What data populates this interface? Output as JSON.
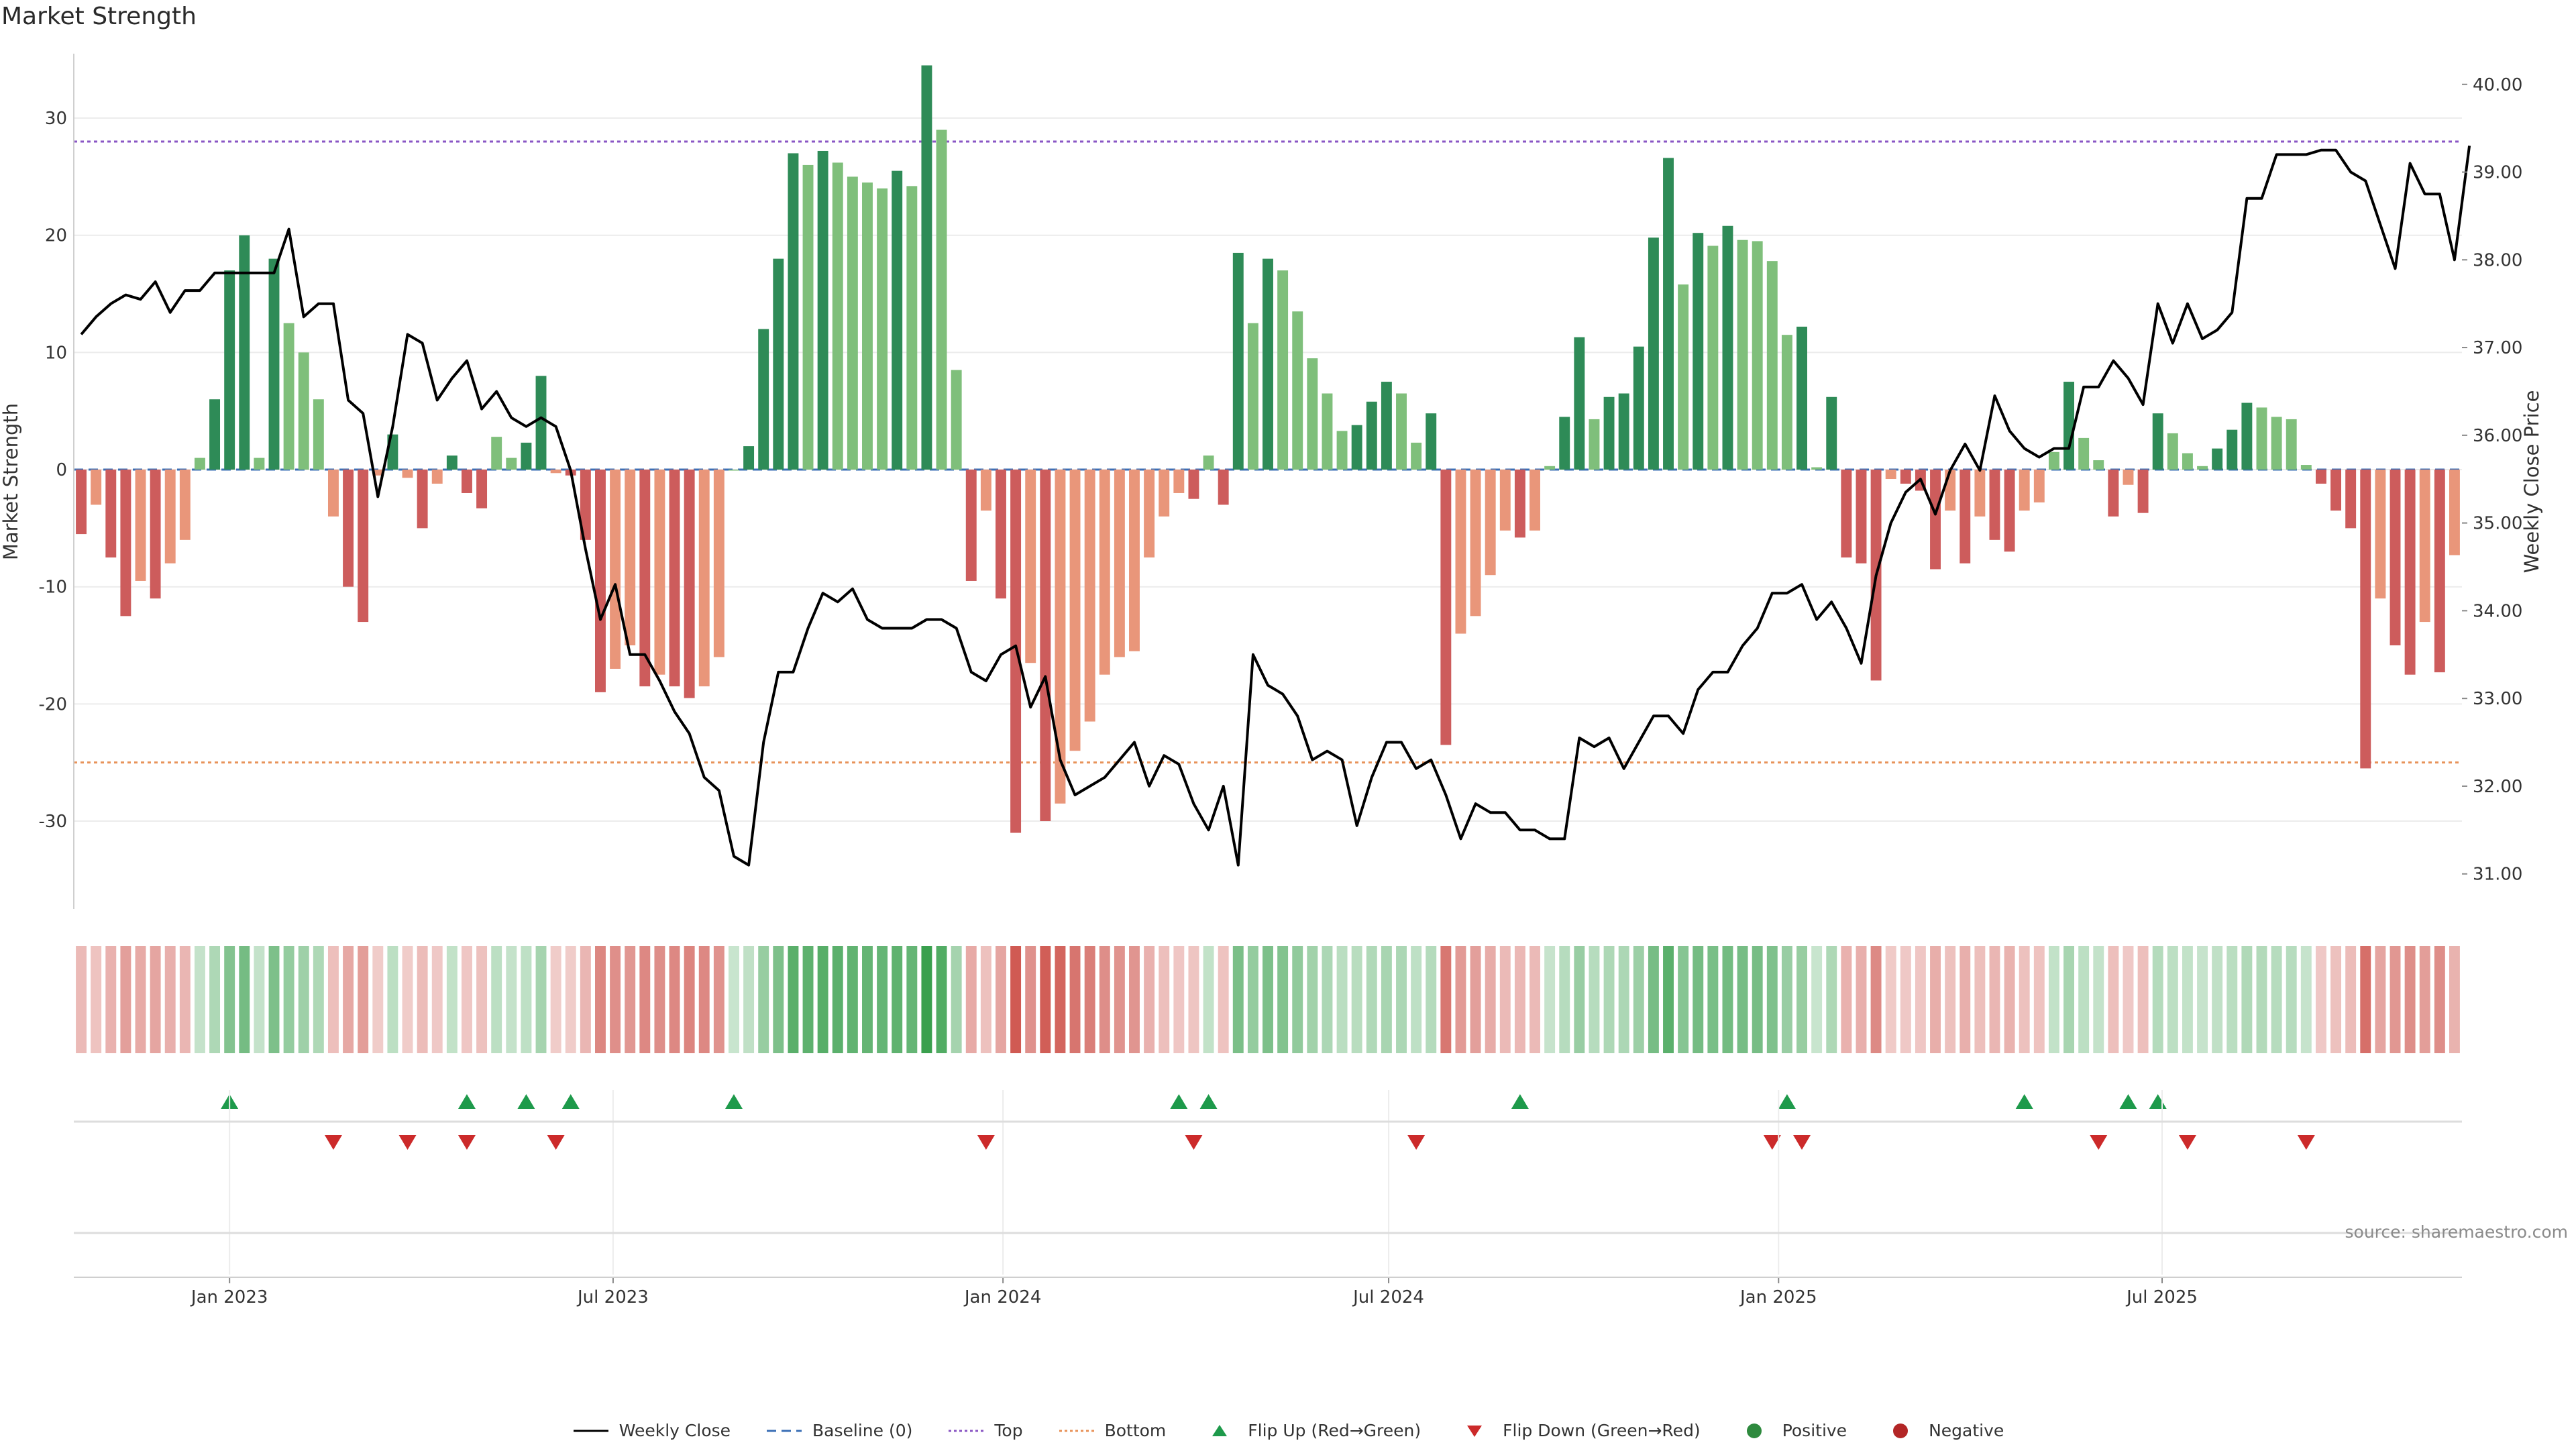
{
  "chart_data": {
    "type": "bar",
    "title": "Market Strength",
    "ylabel": "Market Strength",
    "y2label": "Weekly Close Price",
    "ylim": [
      -37.5,
      35.5
    ],
    "y2lim": [
      30.6,
      40.35
    ],
    "yticks": [
      -30,
      -20,
      -10,
      0,
      10,
      20,
      30
    ],
    "y2ticks": [
      "31.00",
      "32.00",
      "33.00",
      "34.00",
      "35.00",
      "36.00",
      "37.00",
      "38.00",
      "39.00",
      "40.00"
    ],
    "x_start": "2022-10-23",
    "x_step_days": 7,
    "xticks": [
      {
        "date": "2023-01-01",
        "label": "Jan 2023"
      },
      {
        "date": "2023-07-01",
        "label": "Jul 2023"
      },
      {
        "date": "2024-01-01",
        "label": "Jan 2024"
      },
      {
        "date": "2024-07-01",
        "label": "Jul 2024"
      },
      {
        "date": "2025-01-01",
        "label": "Jan 2025"
      },
      {
        "date": "2025-07-01",
        "label": "Jul 2025"
      }
    ],
    "top_threshold": 28,
    "bottom_threshold": -25,
    "grid": true,
    "legend_position": "bottom",
    "strength": [
      -5.5,
      -3,
      -7.5,
      -12.5,
      -9.5,
      -11,
      -8,
      -6,
      1,
      6,
      17,
      20,
      1,
      18,
      12.5,
      10,
      6,
      -4,
      -10,
      -13,
      -0.5,
      3,
      -0.7,
      -5,
      -1.2,
      1.2,
      -2,
      -3.3,
      2.8,
      1,
      2.3,
      8,
      -0.3,
      -0.5,
      -6,
      -19,
      -17,
      -15,
      -18.5,
      -17.5,
      -18.5,
      -19.5,
      -18.5,
      -16,
      0,
      2,
      12,
      18,
      27,
      26,
      27.2,
      26.2,
      25,
      24.5,
      24,
      25.5,
      24.2,
      34.5,
      29,
      8.5,
      -9.5,
      -3.5,
      -11,
      -31,
      -16.5,
      -30,
      -28.5,
      -24,
      -21.5,
      -17.5,
      -16,
      -15.5,
      -7.5,
      -4,
      -2,
      -2.5,
      1.2,
      -3,
      18.5,
      12.5,
      18,
      17,
      13.5,
      9.5,
      6.5,
      3.3,
      3.8,
      5.8,
      7.5,
      6.5,
      2.3,
      4.8,
      -23.5,
      -14,
      -12.5,
      -9,
      -5.2,
      -5.8,
      -5.2,
      0.3,
      4.5,
      11.3,
      4.3,
      6.2,
      6.5,
      10.5,
      19.8,
      26.6,
      15.8,
      20.2,
      19.1,
      20.8,
      19.6,
      19.5,
      17.8,
      11.5,
      12.2,
      0.2,
      6.2,
      -7.5,
      -8,
      -18,
      -0.8,
      -1.2,
      -1.8,
      -8.5,
      -3.5,
      -8,
      -4,
      -6,
      -7,
      -3.5,
      -2.8,
      1.5,
      7.5,
      2.7,
      0.8,
      -4,
      -1.3,
      -3.7,
      4.8,
      3.1,
      1.4,
      0.3,
      1.8,
      3.4,
      5.7,
      5.3,
      4.5,
      4.3,
      0.4,
      -1.2,
      -3.5,
      -5,
      -25.5,
      -11,
      -15,
      -17.5,
      -13,
      -17.3,
      -7.3
    ],
    "series": [
      {
        "name": "Weekly Close",
        "axis": "right",
        "values": [
          37.15,
          37.35,
          37.5,
          37.6,
          37.55,
          37.75,
          37.4,
          37.65,
          37.65,
          37.85,
          37.85,
          37.85,
          37.85,
          37.85,
          38.35,
          37.35,
          37.5,
          37.5,
          36.4,
          36.25,
          35.3,
          36.1,
          37.15,
          37.05,
          36.4,
          36.65,
          36.85,
          36.3,
          36.5,
          36.2,
          36.1,
          36.2,
          36.1,
          35.6,
          34.7,
          33.9,
          34.3,
          33.5,
          33.5,
          33.2,
          32.85,
          32.6,
          32.1,
          31.95,
          31.2,
          31.1,
          32.5,
          33.3,
          33.3,
          33.8,
          34.2,
          34.1,
          34.25,
          33.9,
          33.8,
          33.8,
          33.8,
          33.9,
          33.9,
          33.8,
          33.3,
          33.2,
          33.5,
          33.6,
          32.9,
          33.25,
          32.3,
          31.9,
          32,
          32.1,
          32.3,
          32.5,
          32,
          32.35,
          32.25,
          31.8,
          31.5,
          32,
          31.1,
          33.5,
          33.15,
          33.05,
          32.8,
          32.3,
          32.4,
          32.3,
          31.55,
          32.1,
          32.5,
          32.5,
          32.2,
          32.3,
          31.9,
          31.4,
          31.8,
          31.7,
          31.7,
          31.5,
          31.5,
          31.4,
          31.4,
          32.55,
          32.45,
          32.55,
          32.2,
          32.5,
          32.8,
          32.8,
          32.6,
          33.1,
          33.3,
          33.3,
          33.6,
          33.8,
          34.2,
          34.2,
          34.3,
          33.9,
          34.1,
          33.8,
          33.4,
          34.4,
          35,
          35.35,
          35.5,
          35.1,
          35.6,
          35.9,
          35.6,
          36.45,
          36.05,
          35.85,
          35.75,
          35.85,
          35.85,
          36.55,
          36.55,
          36.85,
          36.65,
          36.35,
          37.5,
          37.05,
          37.5,
          37.1,
          37.2,
          37.4,
          38.7,
          38.7,
          39.2,
          39.2,
          39.2,
          39.25,
          39.25,
          39.0,
          38.9,
          38.4,
          37.9,
          39.1,
          38.75,
          38.75,
          38.0,
          39.3
        ]
      },
      {
        "name": "Baseline (0)",
        "axis": "left"
      },
      {
        "name": "Top",
        "axis": "left"
      },
      {
        "name": "Bottom",
        "axis": "left"
      }
    ],
    "flip_up_indices": [
      10,
      26,
      30,
      33,
      44,
      74,
      76,
      97,
      115,
      131,
      138,
      140
    ],
    "flip_down_indices": [
      17,
      22,
      26,
      32,
      61,
      75,
      90,
      114,
      116,
      136,
      142,
      150
    ],
    "legend": [
      {
        "label": "Weekly Close",
        "kind": "line",
        "color": "#000000",
        "dash": ""
      },
      {
        "label": "Baseline (0)",
        "kind": "line",
        "color": "#3b6fb6",
        "dash": "14,8"
      },
      {
        "label": "Top",
        "kind": "line",
        "color": "#8a56c4",
        "dash": "4,4"
      },
      {
        "label": "Bottom",
        "kind": "line",
        "color": "#e8935a",
        "dash": "4,4"
      },
      {
        "label": "Flip Up (Red→Green)",
        "kind": "up",
        "color": "#1e9a4b"
      },
      {
        "label": "Flip Down (Green→Red)",
        "kind": "down",
        "color": "#cc2a2a"
      },
      {
        "label": "Positive",
        "kind": "dot",
        "color": "#2e8a3e"
      },
      {
        "label": "Negative",
        "kind": "dot",
        "color": "#b32626"
      }
    ],
    "colors": {
      "strong_green": "#2e8b57",
      "light_green": "#7fbf7b",
      "strong_red": "#cd5c5c",
      "light_red": "#e9967a"
    }
  },
  "source": "source: sharemaestro.com"
}
